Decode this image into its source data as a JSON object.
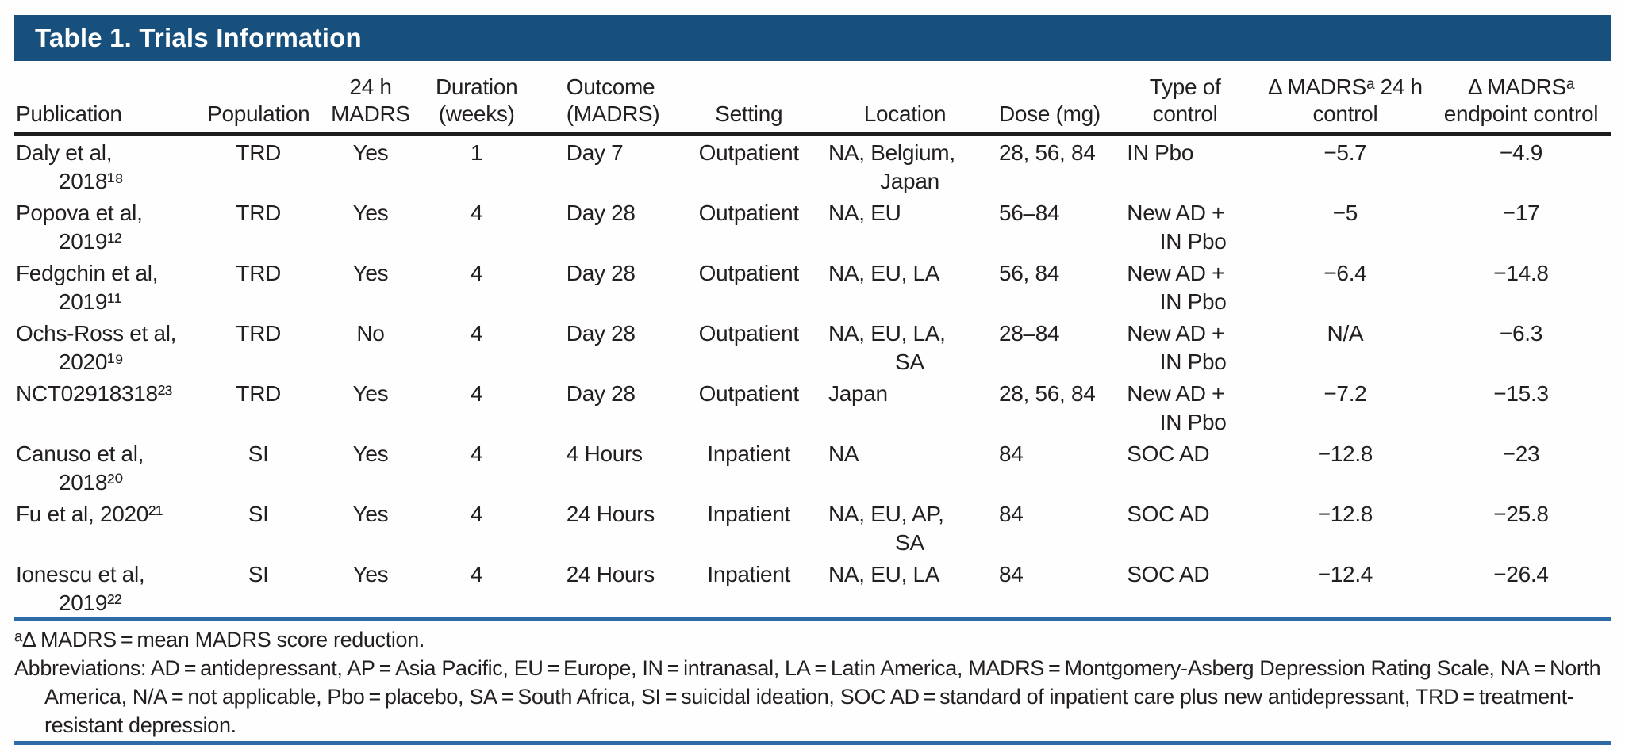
{
  "title": "Table 1. Trials Information",
  "colors": {
    "title_bar_bg": "#17507C",
    "title_text": "#FFFFFF",
    "rule_blue": "#2E6CA6",
    "rule_black": "#1F1C1D",
    "text": "#231F20",
    "page_bg": "#FEFEFE"
  },
  "table": {
    "columns": [
      {
        "id": "publication",
        "label_lines": [
          "Publication"
        ]
      },
      {
        "id": "population",
        "label_lines": [
          "Population"
        ]
      },
      {
        "id": "madrs24",
        "label_lines": [
          "24 h",
          "MADRS"
        ]
      },
      {
        "id": "duration",
        "label_lines": [
          "Duration",
          "(weeks)"
        ]
      },
      {
        "id": "outcome",
        "label_lines": [
          "Outcome",
          "(MADRS)"
        ]
      },
      {
        "id": "setting",
        "label_lines": [
          "Setting"
        ]
      },
      {
        "id": "location",
        "label_lines": [
          "Location"
        ]
      },
      {
        "id": "dose",
        "label_lines": [
          "Dose (mg)"
        ]
      },
      {
        "id": "control",
        "label_lines": [
          "Type of",
          "control"
        ]
      },
      {
        "id": "delta24",
        "label_lines": [
          "Δ MADRSᵃ 24 h",
          "control"
        ]
      },
      {
        "id": "deltaEnd",
        "label_lines": [
          "Δ MADRSᵃ",
          "endpoint control"
        ]
      }
    ],
    "rows": [
      {
        "publication": [
          "Daly et al,",
          "2018¹⁸"
        ],
        "population": "TRD",
        "madrs24": "Yes",
        "duration": "1",
        "outcome": "Day 7",
        "setting": "Outpatient",
        "location": [
          "NA, Belgium,",
          "Japan"
        ],
        "dose": "28, 56, 84",
        "control": [
          "IN Pbo"
        ],
        "delta24": "−5.7",
        "deltaEnd": "−4.9"
      },
      {
        "publication": [
          "Popova et al,",
          "2019¹²"
        ],
        "population": "TRD",
        "madrs24": "Yes",
        "duration": "4",
        "outcome": "Day 28",
        "setting": "Outpatient",
        "location": [
          "NA, EU"
        ],
        "dose": "56–84",
        "control": [
          "New AD +",
          "IN Pbo"
        ],
        "delta24": "−5",
        "deltaEnd": "−17"
      },
      {
        "publication": [
          "Fedgchin et al,",
          "2019¹¹"
        ],
        "population": "TRD",
        "madrs24": "Yes",
        "duration": "4",
        "outcome": "Day 28",
        "setting": "Outpatient",
        "location": [
          "NA, EU, LA"
        ],
        "dose": "56, 84",
        "control": [
          "New AD +",
          "IN Pbo"
        ],
        "delta24": "−6.4",
        "deltaEnd": "−14.8"
      },
      {
        "publication": [
          "Ochs-Ross et al,",
          "2020¹⁹"
        ],
        "population": "TRD",
        "madrs24": "No",
        "duration": "4",
        "outcome": "Day 28",
        "setting": "Outpatient",
        "location": [
          "NA, EU, LA,",
          "SA"
        ],
        "dose": "28–84",
        "control": [
          "New AD +",
          "IN Pbo"
        ],
        "delta24": "N/A",
        "deltaEnd": "−6.3"
      },
      {
        "publication": [
          "NCT02918318²³"
        ],
        "population": "TRD",
        "madrs24": "Yes",
        "duration": "4",
        "outcome": "Day 28",
        "setting": "Outpatient",
        "location": [
          "Japan"
        ],
        "dose": "28, 56, 84",
        "control": [
          "New AD +",
          "IN Pbo"
        ],
        "delta24": "−7.2",
        "deltaEnd": "−15.3"
      },
      {
        "publication": [
          "Canuso et al,",
          "2018²⁰"
        ],
        "population": "SI",
        "madrs24": "Yes",
        "duration": "4",
        "outcome": "4 Hours",
        "setting": "Inpatient",
        "location": [
          "NA"
        ],
        "dose": "84",
        "control": [
          "SOC AD"
        ],
        "delta24": "−12.8",
        "deltaEnd": "−23"
      },
      {
        "publication": [
          "Fu et al, 2020²¹"
        ],
        "population": "SI",
        "madrs24": "Yes",
        "duration": "4",
        "outcome": "24 Hours",
        "setting": "Inpatient",
        "location": [
          "NA, EU, AP,",
          "SA"
        ],
        "dose": "84",
        "control": [
          "SOC AD"
        ],
        "delta24": "−12.8",
        "deltaEnd": "−25.8"
      },
      {
        "publication": [
          "Ionescu et al,",
          "2019²²"
        ],
        "population": "SI",
        "madrs24": "Yes",
        "duration": "4",
        "outcome": "24 Hours",
        "setting": "Inpatient",
        "location": [
          "NA, EU, LA"
        ],
        "dose": "84",
        "control": [
          "SOC AD"
        ],
        "delta24": "−12.4",
        "deltaEnd": "−26.4"
      }
    ]
  },
  "footnotes": {
    "note_a": "ᵃΔ MADRS = mean MADRS score reduction.",
    "abbreviations": "Abbreviations: AD = antidepressant, AP = Asia Pacific, EU = Europe, IN = intranasal, LA = Latin America, MADRS = Montgomery-Asberg Depression Rating Scale, NA = North America, N/A = not applicable, Pbo = placebo, SA = South Africa, SI = suicidal ideation, SOC AD = standard of inpatient care plus new antidepressant, TRD = treatment-resistant depression."
  }
}
